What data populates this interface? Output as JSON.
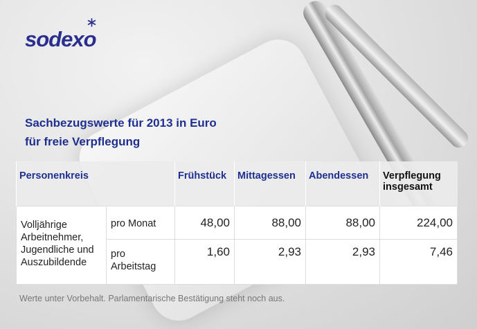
{
  "logo": {
    "text": "sodexo"
  },
  "title": {
    "line1": "Sachbezugswerte für 2013 in Euro",
    "line2": "für freie Verpflegung"
  },
  "table": {
    "headers": [
      "Personenkreis",
      "Frühstück",
      "Mittagessen",
      "Abendessen",
      "Verpflegung insgesamt"
    ],
    "group": "Volljährige Arbeitnehmer, Jugendliche und Auszubildende",
    "rows": [
      {
        "period": "pro Monat",
        "values": [
          "48,00",
          "88,00",
          "88,00",
          "224,00"
        ]
      },
      {
        "period": "pro Arbeitstag",
        "values": [
          "1,60",
          "2,93",
          "2,93",
          "7,46"
        ]
      }
    ]
  },
  "footnote": "Werte unter Vorbehalt. Parlamentarische Bestätigung steht noch aus.",
  "colors": {
    "brand": "#2a2f8f",
    "title": "#1e2f8f"
  }
}
